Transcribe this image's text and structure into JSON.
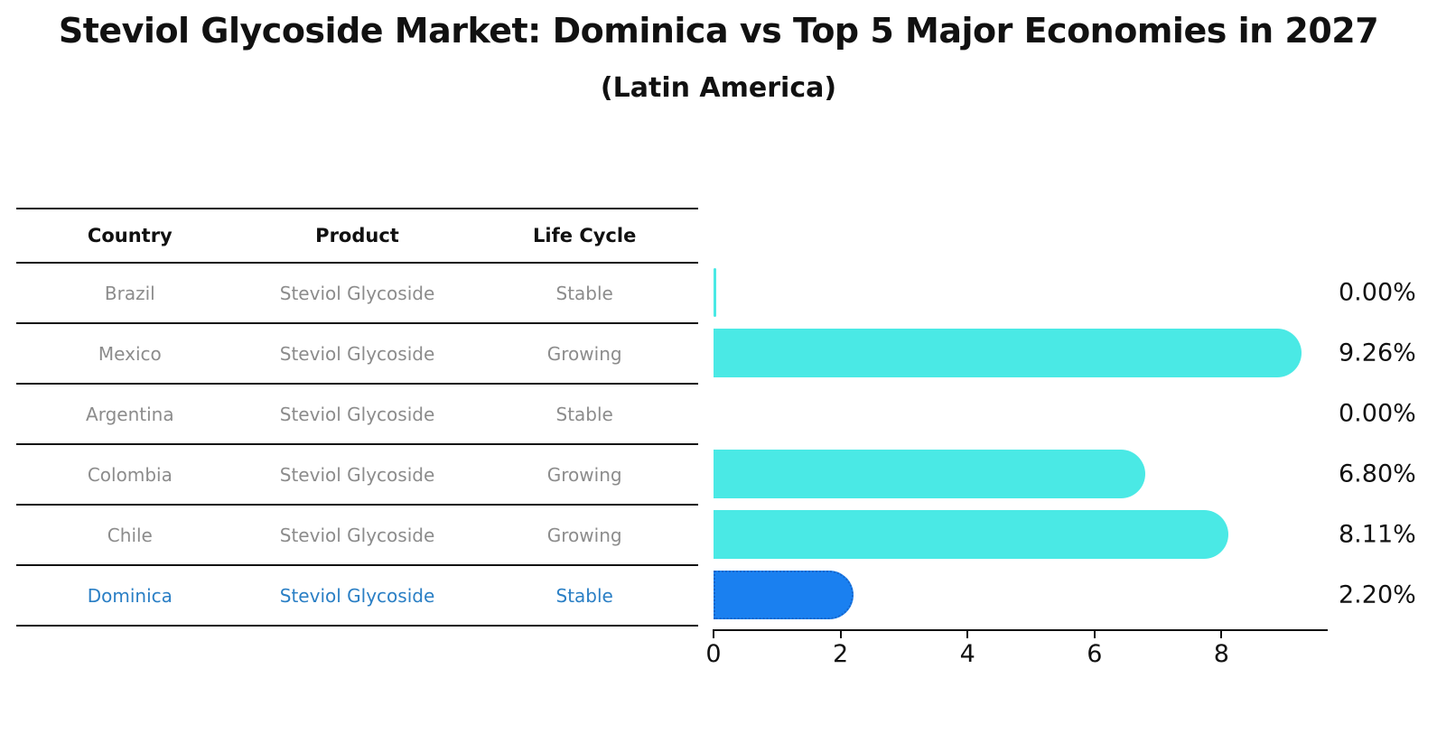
{
  "title": "Steviol Glycoside Market: Dominica vs Top 5 Major Economies in 2027",
  "subtitle": "(Latin America)",
  "table": {
    "headers": [
      "Country",
      "Product",
      "Life Cycle"
    ],
    "rows": [
      {
        "country": "Brazil",
        "product": "Steviol Glycoside",
        "life_cycle": "Stable"
      },
      {
        "country": "Mexico",
        "product": "Steviol Glycoside",
        "life_cycle": "Growing"
      },
      {
        "country": "Argentina",
        "product": "Steviol Glycoside",
        "life_cycle": "Stable"
      },
      {
        "country": "Colombia",
        "product": "Steviol Glycoside",
        "life_cycle": "Growing"
      },
      {
        "country": "Chile",
        "product": "Steviol Glycoside",
        "life_cycle": "Growing"
      },
      {
        "country": "Dominica",
        "product": "Steviol Glycoside",
        "life_cycle": "Stable"
      }
    ]
  },
  "chart_data": {
    "type": "bar",
    "orientation": "horizontal",
    "title": "Steviol Glycoside Market: Dominica vs Top 5 Major Economies in 2027 (Latin America)",
    "categories": [
      "Brazil",
      "Mexico",
      "Argentina",
      "Colombia",
      "Chile",
      "Dominica"
    ],
    "values": [
      0.0,
      9.26,
      0.0,
      6.8,
      8.11,
      2.2
    ],
    "value_labels": [
      "0.00%",
      "9.26%",
      "0.00%",
      "6.80%",
      "8.11%",
      "2.20%"
    ],
    "xlabel": "",
    "ylabel": "",
    "xlim": [
      0,
      9.7
    ],
    "xticks": [
      0,
      2,
      4,
      6,
      8
    ],
    "grid": false,
    "legend": false,
    "highlight_index": 5,
    "zero_sliver_indexes": [
      0
    ],
    "colors": {
      "bar": "#4ae9e5",
      "highlight_bar": "#1a80f0",
      "highlight_border": "#1565cb",
      "highlight_text": "#2a7fc5",
      "text": "#111111",
      "muted_text": "#8c8c8c"
    }
  }
}
